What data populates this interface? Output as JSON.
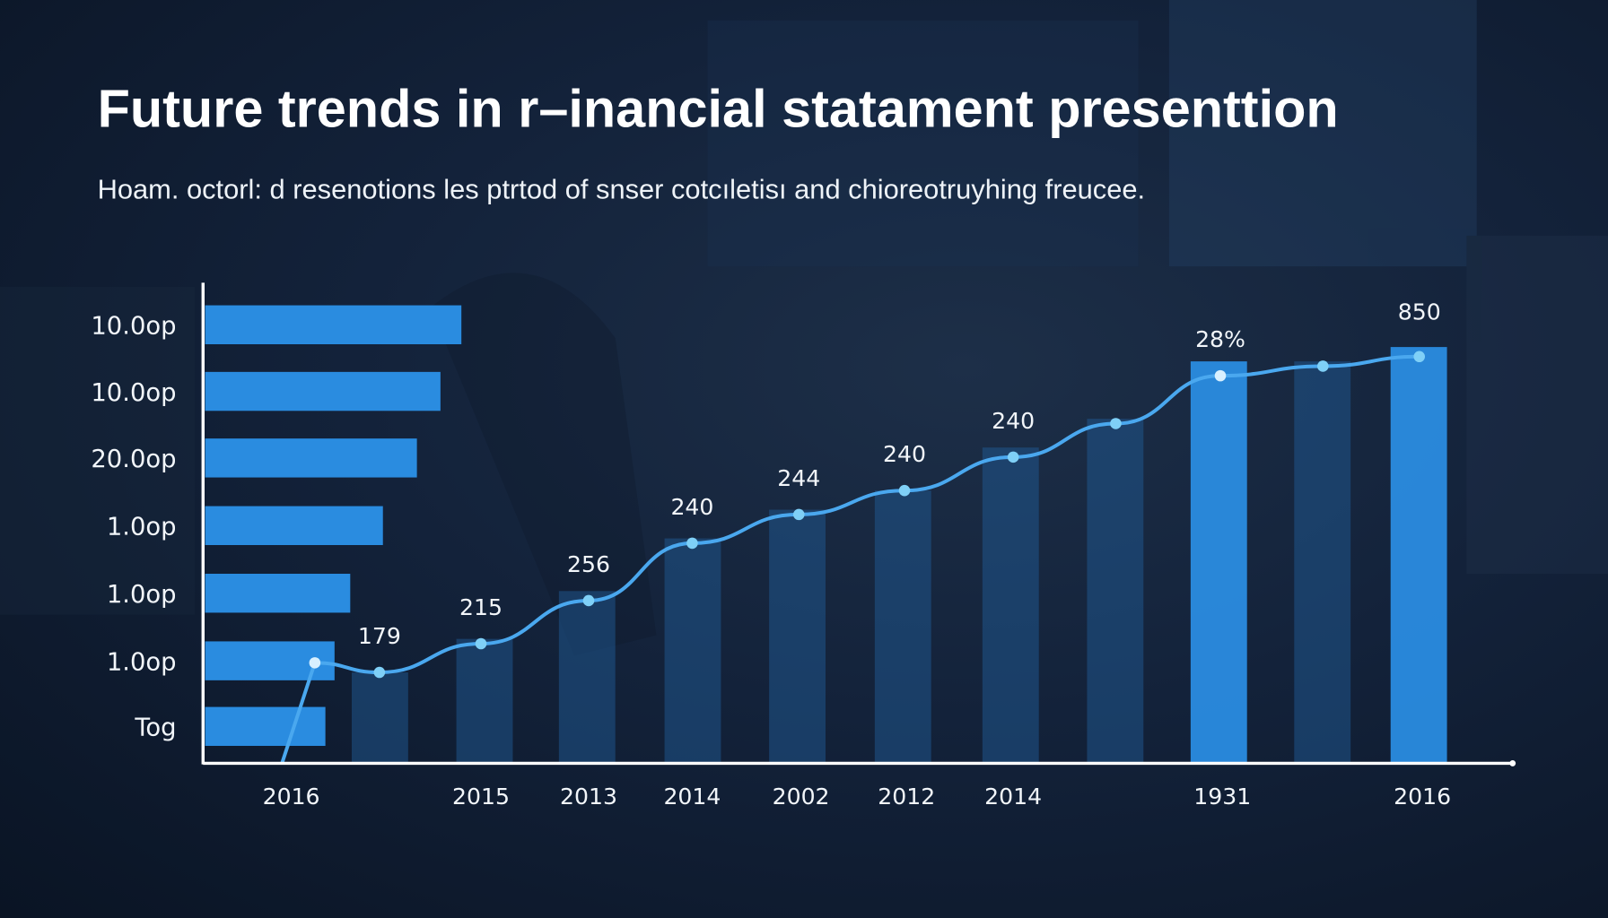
{
  "title": "Future trends in r–inancial statament presenttion",
  "subtitle": "Hoam. octorl: d resenotions les ptrtod of snser cotcıletisı and chioreotruyhing freucee.",
  "colors": {
    "background": "#13223a",
    "bar_bright": "#2a8ce0",
    "bar_dim": "#1f5a94",
    "line": "#4aa8ef",
    "point": "#7fd0f7",
    "axis": "#ffffff"
  },
  "chart_data": {
    "type": "bar",
    "title": "Future trends in r–inancial statament presenttion",
    "grid": false,
    "ylim": [
      0,
      100
    ],
    "horizontal_bars": {
      "categories": [
        "10.0op",
        "10.0op",
        "20.0op",
        "1.0op",
        "1.0op",
        "1.0op",
        "Tog"
      ],
      "values": [
        19.6,
        18.0,
        16.2,
        13.6,
        11.1,
        9.9,
        9.2
      ]
    },
    "x_tick_labels": [
      "2016",
      "2015",
      "2013",
      "2014",
      "2002",
      "2012",
      "2014",
      "1931",
      "2016"
    ],
    "columns": {
      "values": [
        19,
        26,
        36,
        47,
        53,
        57,
        66,
        72,
        84,
        84,
        87
      ],
      "highlighted": [
        false,
        false,
        false,
        false,
        false,
        false,
        false,
        false,
        true,
        false,
        true
      ]
    },
    "line": {
      "values": [
        0,
        21,
        19,
        25,
        34,
        46,
        52,
        57,
        64,
        71,
        81,
        83,
        85
      ],
      "data_labels": [
        "",
        "",
        "179",
        "215",
        "256",
        "240",
        "244",
        "240",
        "240",
        "",
        "28%",
        "",
        "850"
      ]
    }
  }
}
